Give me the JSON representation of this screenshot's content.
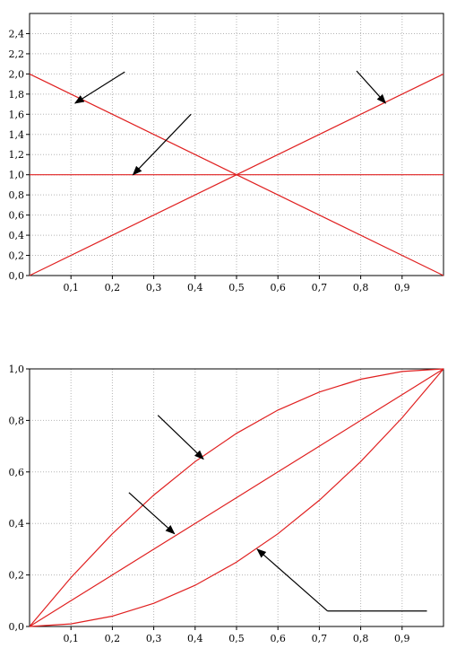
{
  "colors": {
    "series": "#e02020",
    "arrow": "#000000",
    "grid": "#b5b5b5"
  },
  "chart_data": [
    {
      "type": "line",
      "title": "",
      "xlabel": "",
      "ylabel": "",
      "xlim": [
        0,
        1
      ],
      "ylim": [
        0,
        2.6
      ],
      "xticks": [
        0.1,
        0.2,
        0.3,
        0.4,
        0.5,
        0.6,
        0.7,
        0.8,
        0.9
      ],
      "xtick_labels": [
        "0,1",
        "0,2",
        "0,3",
        "0,4",
        "0,5",
        "0,6",
        "0,7",
        "0,8",
        "0,9"
      ],
      "yticks": [
        0.0,
        0.2,
        0.4,
        0.6,
        0.8,
        1.0,
        1.2,
        1.4,
        1.6,
        1.8,
        2.0,
        2.2,
        2.4
      ],
      "ytick_labels": [
        "0,0",
        "0,2",
        "0,4",
        "0,6",
        "0,8",
        "1,0",
        "1,2",
        "1,4",
        "1,6",
        "1,8",
        "2,0",
        "2,2",
        "2,4"
      ],
      "grid": true,
      "series": [
        {
          "x": [
            0,
            1
          ],
          "y": [
            2.0,
            0.0
          ]
        },
        {
          "x": [
            0,
            1
          ],
          "y": [
            1.0,
            1.0
          ]
        },
        {
          "x": [
            0,
            1
          ],
          "y": [
            0.0,
            2.0
          ]
        }
      ],
      "annotations": [
        {
          "type": "arrow",
          "from": [
            0.23,
            2.02
          ],
          "to": [
            0.11,
            1.71
          ]
        },
        {
          "type": "arrow",
          "from": [
            0.39,
            1.6
          ],
          "to": [
            0.25,
            1.0
          ]
        },
        {
          "type": "arrow",
          "from": [
            0.79,
            2.03
          ],
          "to": [
            0.86,
            1.71
          ]
        }
      ]
    },
    {
      "type": "line",
      "title": "",
      "xlabel": "",
      "ylabel": "",
      "xlim": [
        0,
        1
      ],
      "ylim": [
        0,
        1
      ],
      "xticks": [
        0.1,
        0.2,
        0.3,
        0.4,
        0.5,
        0.6,
        0.7,
        0.8,
        0.9
      ],
      "xtick_labels": [
        "0,1",
        "0,2",
        "0,3",
        "0,4",
        "0,5",
        "0,6",
        "0,7",
        "0,8",
        "0,9"
      ],
      "yticks": [
        0.0,
        0.2,
        0.4,
        0.6,
        0.8,
        1.0
      ],
      "ytick_labels": [
        "0,0",
        "0,2",
        "0,4",
        "0,6",
        "0,8",
        "1,0"
      ],
      "grid": true,
      "series": [
        {
          "x": [
            0,
            0.1,
            0.2,
            0.3,
            0.4,
            0.5,
            0.6,
            0.7,
            0.8,
            0.9,
            1.0
          ],
          "y": [
            0,
            0.19,
            0.36,
            0.51,
            0.64,
            0.75,
            0.84,
            0.91,
            0.96,
            0.99,
            1.0
          ]
        },
        {
          "x": [
            0,
            0.1,
            0.2,
            0.3,
            0.4,
            0.5,
            0.6,
            0.7,
            0.8,
            0.9,
            1.0
          ],
          "y": [
            0,
            0.1,
            0.2,
            0.3,
            0.4,
            0.5,
            0.6,
            0.7,
            0.8,
            0.9,
            1.0
          ]
        },
        {
          "x": [
            0,
            0.1,
            0.2,
            0.3,
            0.4,
            0.5,
            0.6,
            0.7,
            0.8,
            0.9,
            1.0
          ],
          "y": [
            0,
            0.01,
            0.04,
            0.09,
            0.16,
            0.25,
            0.36,
            0.49,
            0.64,
            0.81,
            1.0
          ]
        }
      ],
      "annotations": [
        {
          "type": "arrow",
          "from": [
            0.31,
            0.82
          ],
          "to": [
            0.42,
            0.65
          ]
        },
        {
          "type": "arrow",
          "from": [
            0.24,
            0.52
          ],
          "to": [
            0.35,
            0.36
          ]
        },
        {
          "type": "arrow",
          "from": [
            0.72,
            0.06
          ],
          "to": [
            0.55,
            0.3
          ],
          "leader_to": [
            0.96,
            0.06
          ]
        }
      ]
    }
  ]
}
